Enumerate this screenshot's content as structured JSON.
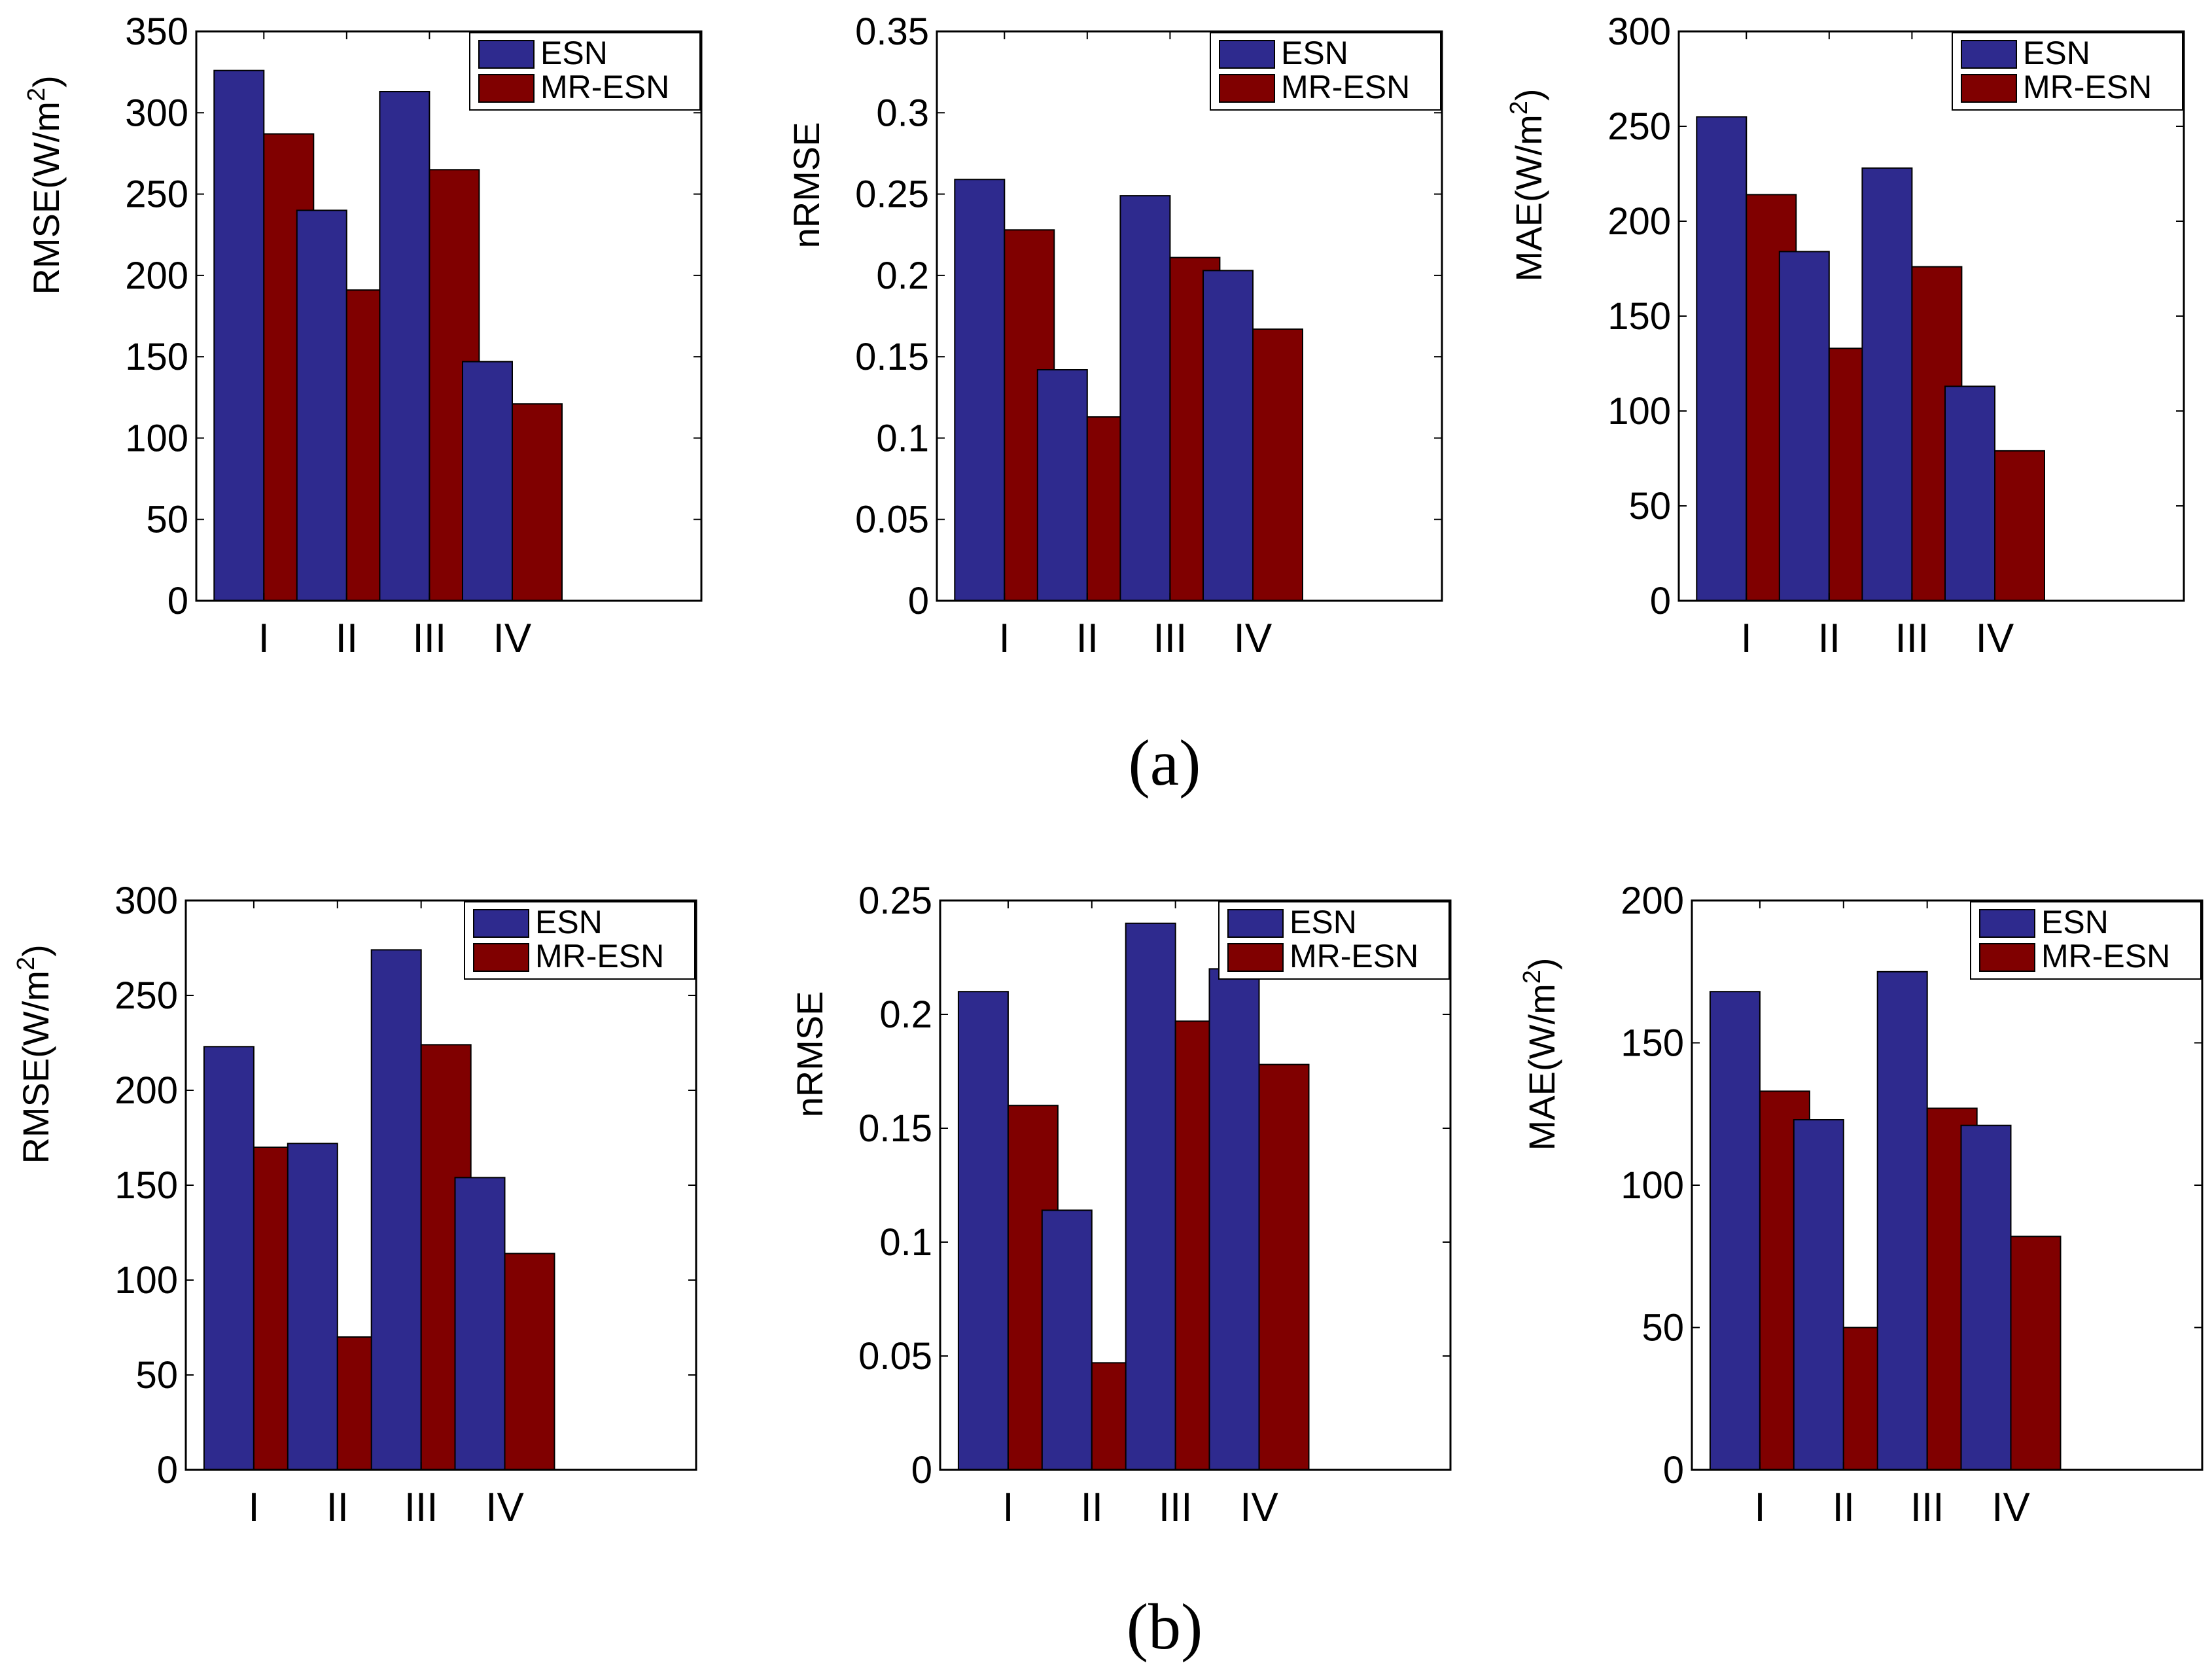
{
  "colors": {
    "esn": "#2e2a8e",
    "mr_esn": "#800000",
    "axis": "#000000"
  },
  "captions": {
    "a": "(a)",
    "b": "(b)"
  },
  "chart_data": [
    {
      "type": "bar",
      "panel": "a",
      "title": "",
      "ylabel": "RMSE(W/m",
      "ylabel_sup": "2",
      "ylabel_tail": ")",
      "categories": [
        "I",
        "II",
        "III",
        "IV"
      ],
      "ylim": [
        0,
        350
      ],
      "yticks": [
        0,
        50,
        100,
        150,
        200,
        250,
        300,
        350
      ],
      "ytick_labels": [
        "0",
        "50",
        "100",
        "150",
        "200",
        "250",
        "300",
        "350"
      ],
      "legend": "top-right",
      "series": [
        {
          "name": "ESN",
          "values": [
            326,
            240,
            313,
            147
          ]
        },
        {
          "name": "MR-ESN",
          "values": [
            287,
            191,
            265,
            121
          ]
        }
      ]
    },
    {
      "type": "bar",
      "panel": "a",
      "title": "",
      "ylabel": "nRMSE",
      "ylabel_sup": "",
      "ylabel_tail": "",
      "categories": [
        "I",
        "II",
        "III",
        "IV"
      ],
      "ylim": [
        0,
        0.35
      ],
      "yticks": [
        0,
        0.05,
        0.1,
        0.15,
        0.2,
        0.25,
        0.3,
        0.35
      ],
      "ytick_labels": [
        "0",
        "0.05",
        "0.1",
        "0.15",
        "0.2",
        "0.25",
        "0.3",
        "0.35"
      ],
      "legend": "top-right",
      "series": [
        {
          "name": "ESN",
          "values": [
            0.259,
            0.142,
            0.249,
            0.203
          ]
        },
        {
          "name": "MR-ESN",
          "values": [
            0.228,
            0.113,
            0.211,
            0.167
          ]
        }
      ]
    },
    {
      "type": "bar",
      "panel": "a",
      "title": "",
      "ylabel": "MAE(W/m",
      "ylabel_sup": "2",
      "ylabel_tail": ")",
      "categories": [
        "I",
        "II",
        "III",
        "IV"
      ],
      "ylim": [
        0,
        300
      ],
      "yticks": [
        0,
        50,
        100,
        150,
        200,
        250,
        300
      ],
      "ytick_labels": [
        "0",
        "50",
        "100",
        "150",
        "200",
        "250",
        "300"
      ],
      "legend": "top-right",
      "series": [
        {
          "name": "ESN",
          "values": [
            255,
            184,
            228,
            113
          ]
        },
        {
          "name": "MR-ESN",
          "values": [
            214,
            133,
            176,
            79
          ]
        }
      ]
    },
    {
      "type": "bar",
      "panel": "b",
      "title": "",
      "ylabel": "RMSE(W/m",
      "ylabel_sup": "2",
      "ylabel_tail": ")",
      "categories": [
        "I",
        "II",
        "III",
        "IV"
      ],
      "ylim": [
        0,
        300
      ],
      "yticks": [
        0,
        50,
        100,
        150,
        200,
        250,
        300
      ],
      "ytick_labels": [
        "0",
        "50",
        "100",
        "150",
        "200",
        "250",
        "300"
      ],
      "legend": "top-right",
      "series": [
        {
          "name": "ESN",
          "values": [
            223,
            172,
            274,
            154
          ]
        },
        {
          "name": "MR-ESN",
          "values": [
            170,
            70,
            224,
            114
          ]
        }
      ]
    },
    {
      "type": "bar",
      "panel": "b",
      "title": "",
      "ylabel": "nRMSE",
      "ylabel_sup": "",
      "ylabel_tail": "",
      "categories": [
        "I",
        "II",
        "III",
        "IV"
      ],
      "ylim": [
        0,
        0.25
      ],
      "yticks": [
        0,
        0.05,
        0.1,
        0.15,
        0.2,
        0.25
      ],
      "ytick_labels": [
        "0",
        "0.05",
        "0.1",
        "0.15",
        "0.2",
        "0.25"
      ],
      "legend": "top-right",
      "series": [
        {
          "name": "ESN",
          "values": [
            0.21,
            0.114,
            0.24,
            0.22
          ]
        },
        {
          "name": "MR-ESN",
          "values": [
            0.16,
            0.047,
            0.197,
            0.178
          ]
        }
      ]
    },
    {
      "type": "bar",
      "panel": "b",
      "title": "",
      "ylabel": "MAE(W/m",
      "ylabel_sup": "2",
      "ylabel_tail": ")",
      "categories": [
        "I",
        "II",
        "III",
        "IV"
      ],
      "ylim": [
        0,
        200
      ],
      "yticks": [
        0,
        50,
        100,
        150,
        200
      ],
      "ytick_labels": [
        "0",
        "50",
        "100",
        "150",
        "200"
      ],
      "legend": "top-right",
      "series": [
        {
          "name": "ESN",
          "values": [
            168,
            123,
            175,
            121
          ]
        },
        {
          "name": "MR-ESN",
          "values": [
            133,
            50,
            127,
            82
          ]
        }
      ]
    }
  ]
}
